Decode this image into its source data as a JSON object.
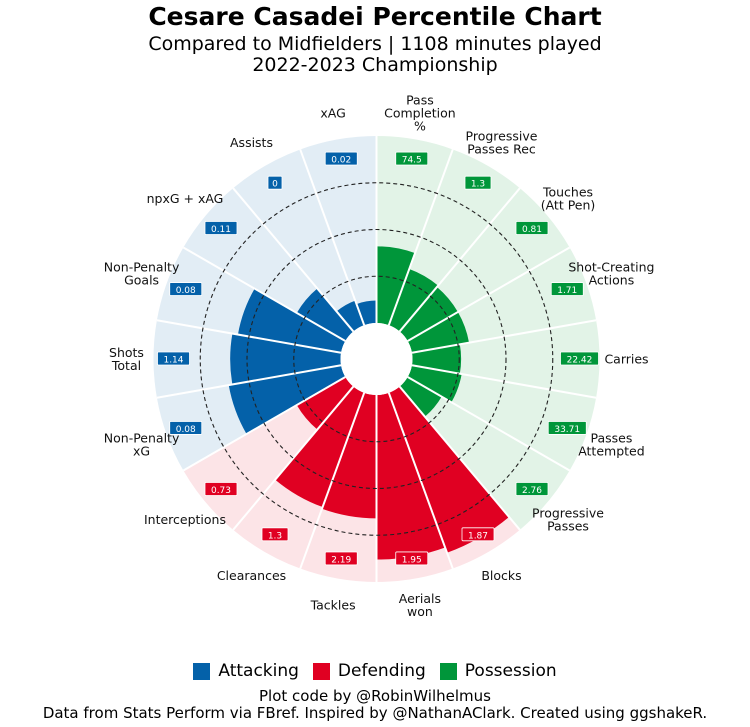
{
  "title": "Cesare Casadei Percentile Chart",
  "subtitle_line1": "Compared to Midfielders | 1108 minutes played",
  "subtitle_line2": "2022-2023 Championship",
  "legend": [
    {
      "label": "Attacking",
      "color": "#0461a9"
    },
    {
      "label": "Defending",
      "color": "#e00022"
    },
    {
      "label": "Possession",
      "color": "#00963a"
    }
  ],
  "footer_line1": "Plot code by @RobinWilhelmus",
  "footer_line2": "Data from Stats Perform via FBref. Inspired by @NathanAClark. Created using ggshakeR.",
  "chart_data": {
    "type": "pizza",
    "range": [
      0,
      100
    ],
    "gridlines": [
      25,
      50,
      75
    ],
    "background_colors": {
      "Attacking": "#e2edf5",
      "Defending": "#fce4e7",
      "Possession": "#e2f3e7"
    },
    "slices": [
      {
        "label": "Pass\nCompletion\n%",
        "group": "Possession",
        "percentile": 41,
        "value": "74.5"
      },
      {
        "label": "Progressive\nPasses Rec",
        "group": "Possession",
        "percentile": 32,
        "value": "1.3"
      },
      {
        "label": "Touches\n(Att Pen)",
        "group": "Possession",
        "percentile": 31,
        "value": "0.81"
      },
      {
        "label": "Shot-Creating\nActions",
        "group": "Possession",
        "percentile": 31,
        "value": "1.71"
      },
      {
        "label": "Carries",
        "group": "Possession",
        "percentile": 26,
        "value": "22.42"
      },
      {
        "label": "Passes\nAttempted",
        "group": "Possession",
        "percentile": 27,
        "value": "33.71"
      },
      {
        "label": "Progressive\nPasses",
        "group": "Possession",
        "percentile": 21,
        "value": "2.76"
      },
      {
        "label": "Blocks",
        "group": "Defending",
        "percentile": 91,
        "value": "1.87"
      },
      {
        "label": "Aerials\nwon",
        "group": "Defending",
        "percentile": 88,
        "value": "1.95"
      },
      {
        "label": "Tackles",
        "group": "Defending",
        "percentile": 66,
        "value": "2.19"
      },
      {
        "label": "Clearances",
        "group": "Defending",
        "percentile": 65,
        "value": "1.3"
      },
      {
        "label": "Interceptions",
        "group": "Defending",
        "percentile": 30,
        "value": "0.73"
      },
      {
        "label": "Non-Penalty\nxG",
        "group": "Attacking",
        "percentile": 61,
        "value": "0.08"
      },
      {
        "label": "Shots\nTotal",
        "group": "Attacking",
        "percentile": 59,
        "value": "1.14"
      },
      {
        "label": "Non-Penalty\nGoals",
        "group": "Attacking",
        "percentile": 56,
        "value": "0.08"
      },
      {
        "label": "npxG + xAG",
        "group": "Attacking",
        "percentile": 30,
        "value": "0.11"
      },
      {
        "label": "Assists",
        "group": "Attacking",
        "percentile": 14,
        "value": "0"
      },
      {
        "label": "xAG",
        "group": "Attacking",
        "percentile": 12,
        "value": "0.02"
      }
    ]
  }
}
